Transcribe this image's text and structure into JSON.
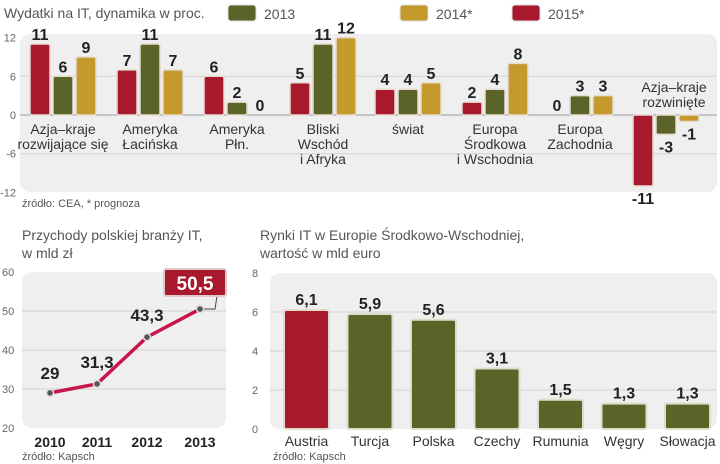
{
  "chart_data": [
    {
      "type": "bar",
      "title": "Wydatki na IT, dynamika w proc.",
      "xlabel": "",
      "ylabel": "",
      "ylim": [
        -12,
        12
      ],
      "yticks": [
        "12",
        "6",
        "0",
        "-6",
        "-12"
      ],
      "ytick_values": [
        12,
        6,
        0,
        -6,
        -12
      ],
      "grid": true,
      "legend_position": "top-right",
      "categories": [
        [
          "Azja–kraje",
          "rozwijające się"
        ],
        [
          "Ameryka",
          "Łacińska"
        ],
        [
          "Ameryka",
          "Płn."
        ],
        [
          "Bliski",
          "Wschód",
          "i Afryka"
        ],
        [
          "świat"
        ],
        [
          "Europa",
          "Środkowa",
          "i Wschodnia"
        ],
        [
          "Europa",
          "Zachodnia"
        ],
        [
          "Azja–kraje",
          "rozwinięte"
        ]
      ],
      "series": [
        {
          "name": "2015*",
          "color": "#a8192e",
          "values": [
            11,
            7,
            6,
            5,
            4,
            2,
            0,
            -11
          ]
        },
        {
          "name": "2013",
          "color": "#5a6428",
          "values": [
            6,
            11,
            2,
            11,
            4,
            4,
            3,
            -3
          ]
        },
        {
          "name": "2014*",
          "color": "#c49a2c",
          "values": [
            9,
            7,
            0,
            12,
            5,
            8,
            3,
            -1
          ]
        }
      ],
      "legend": [
        {
          "name": "2013",
          "color": "#5a6428"
        },
        {
          "name": "2014*",
          "color": "#c49a2c"
        },
        {
          "name": "2015*",
          "color": "#a8192e"
        }
      ],
      "source": "źródło: CEA, * prognoza"
    },
    {
      "type": "line",
      "title": [
        "Przychody polskiej branży IT,",
        "w mld zł"
      ],
      "x": [
        "2010",
        "2011",
        "2012",
        "2013"
      ],
      "values": [
        29,
        31.3,
        43.3,
        50.5
      ],
      "labels": [
        "29",
        "31,3",
        "43,3",
        "50,5"
      ],
      "highlight_label": "50,5",
      "ylim": [
        20,
        60
      ],
      "yticks": [
        "60",
        "50",
        "40",
        "30",
        "20"
      ],
      "ytick_values": [
        60,
        50,
        40,
        30,
        20
      ],
      "grid": true,
      "color": "#c8164a",
      "source": "źródło: Kapsch"
    },
    {
      "type": "bar",
      "title": [
        "Rynki IT w Europie Środkowo-Wschodniej,",
        "wartość w mld euro"
      ],
      "categories": [
        "Austria",
        "Turcja",
        "Polska",
        "Czechy",
        "Rumunia",
        "Węgry",
        "Słowacja"
      ],
      "values": [
        6.1,
        5.9,
        5.6,
        3.1,
        1.5,
        1.3,
        1.3
      ],
      "labels": [
        "6,1",
        "5,9",
        "5,6",
        "3,1",
        "1,5",
        "1,3",
        "1,3"
      ],
      "colors": [
        "#a8192e",
        "#5a6428",
        "#5a6428",
        "#5a6428",
        "#5a6428",
        "#5a6428",
        "#5a6428"
      ],
      "ylim": [
        0,
        8
      ],
      "yticks": [
        "8",
        "6",
        "4",
        "2",
        "0"
      ],
      "ytick_values": [
        8,
        6,
        4,
        2,
        0
      ],
      "grid": true,
      "source": "źródło: Kapsch"
    }
  ]
}
